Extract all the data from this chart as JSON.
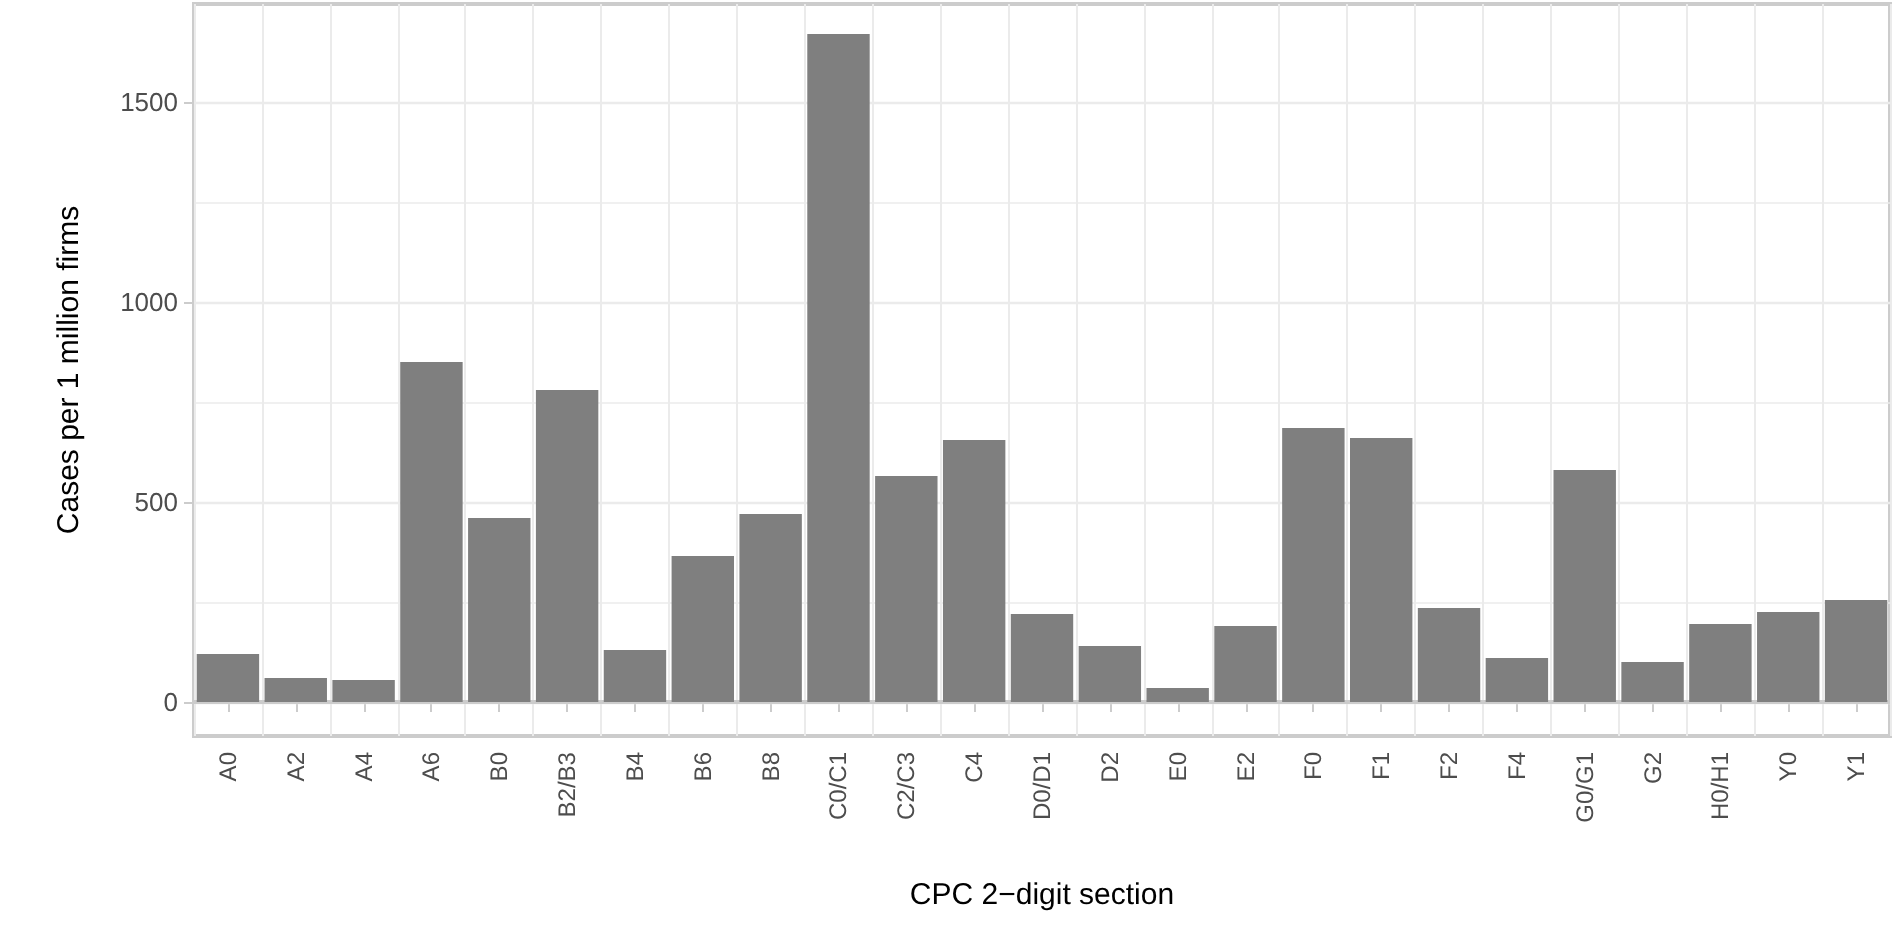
{
  "chart_data": {
    "type": "bar",
    "xlabel": "CPC 2−digit section",
    "ylabel": "Cases per 1 million firms",
    "categories": [
      "A0",
      "A2",
      "A4",
      "A6",
      "B0",
      "B2/B3",
      "B4",
      "B6",
      "B8",
      "C0/C1",
      "C2/C3",
      "C4",
      "D0/D1",
      "D2",
      "E0",
      "E2",
      "F0",
      "F1",
      "F2",
      "F4",
      "G0/G1",
      "G2",
      "H0/H1",
      "Y0",
      "Y1"
    ],
    "values": [
      120,
      60,
      55,
      850,
      460,
      780,
      130,
      365,
      470,
      1670,
      565,
      655,
      220,
      140,
      35,
      190,
      685,
      660,
      235,
      110,
      580,
      100,
      195,
      225,
      255
    ],
    "color": "#7f7f7f",
    "ylim": [
      -85,
      1745
    ],
    "yticks": [
      0,
      {
        "value": 250,
        "label": null
      },
      500,
      {
        "value": 750,
        "label": null
      },
      1000,
      {
        "value": 1250,
        "label": null
      },
      1500
    ],
    "ref_lines": [
      {
        "axis": "y",
        "value": 0,
        "color": "#cccccc"
      }
    ],
    "grid": true
  }
}
